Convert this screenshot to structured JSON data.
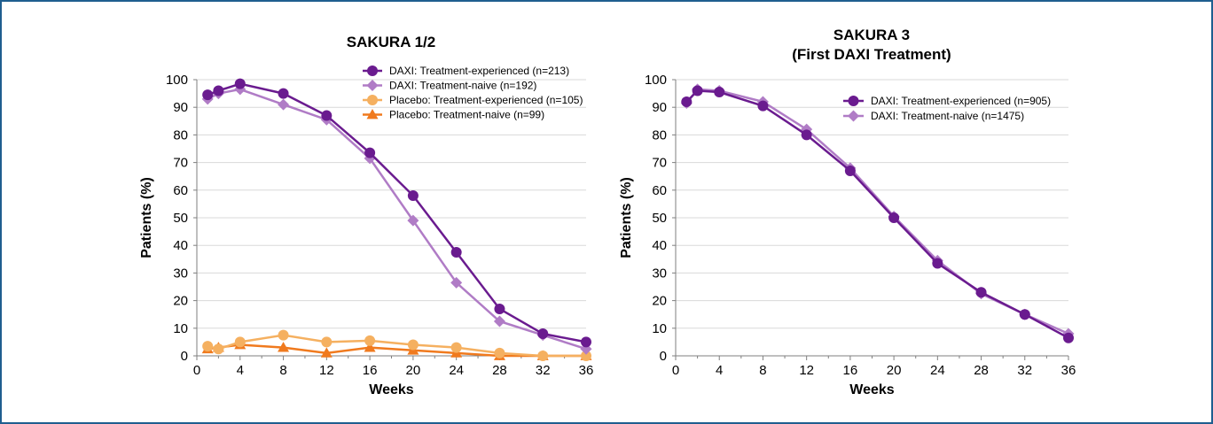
{
  "chart_data": [
    {
      "type": "line",
      "title": "SAKURA 1/2",
      "subtitle": "",
      "xlabel": "Weeks",
      "ylabel": "Patients (%)",
      "xlim": [
        0,
        36
      ],
      "ylim": [
        0,
        100
      ],
      "xticks": [
        0,
        4,
        8,
        12,
        16,
        20,
        24,
        28,
        32,
        36
      ],
      "yticks": [
        0,
        10,
        20,
        30,
        40,
        50,
        60,
        70,
        80,
        90,
        100
      ],
      "grid": true,
      "legend": "top-right",
      "series": [
        {
          "name": "DAXI: Treatment-experienced (n=213)",
          "color": "#6a1b8f",
          "marker": "circle",
          "x": [
            1,
            2,
            4,
            8,
            12,
            16,
            20,
            24,
            28,
            32,
            36
          ],
          "y": [
            94.5,
            96,
            98.5,
            95,
            87,
            73.5,
            58,
            37.5,
            17,
            8,
            5
          ]
        },
        {
          "name": "DAXI: Treatment-naive (n=192)",
          "color": "#b07cc6",
          "marker": "diamond",
          "x": [
            1,
            2,
            4,
            8,
            12,
            16,
            20,
            24,
            28,
            32,
            36
          ],
          "y": [
            93,
            95,
            96.5,
            91,
            85.5,
            71.5,
            49,
            26.5,
            12.5,
            7.5,
            2.5
          ]
        },
        {
          "name": "Placebo: Treatment-experienced (n=105)",
          "color": "#f5b060",
          "marker": "circle",
          "x": [
            1,
            2,
            4,
            8,
            12,
            16,
            20,
            24,
            28,
            32,
            36
          ],
          "y": [
            3.5,
            2.5,
            5,
            7.5,
            5,
            5.5,
            4,
            3,
            1,
            0,
            0
          ]
        },
        {
          "name": "Placebo: Treatment-naive (n=99)",
          "color": "#f07a1e",
          "marker": "triangle",
          "x": [
            1,
            2,
            4,
            8,
            12,
            16,
            20,
            24,
            28,
            32,
            36
          ],
          "y": [
            2.5,
            3,
            4,
            3,
            1,
            3,
            2,
            1,
            0,
            0,
            0
          ]
        }
      ]
    },
    {
      "type": "line",
      "title": "SAKURA 3",
      "subtitle": "(First DAXI Treatment)",
      "xlabel": "Weeks",
      "ylabel": "Patients (%)",
      "xlim": [
        0,
        36
      ],
      "ylim": [
        0,
        100
      ],
      "xticks": [
        0,
        4,
        8,
        12,
        16,
        20,
        24,
        28,
        32,
        36
      ],
      "yticks": [
        0,
        10,
        20,
        30,
        40,
        50,
        60,
        70,
        80,
        90,
        100
      ],
      "grid": true,
      "legend": "top-right",
      "series": [
        {
          "name": "DAXI: Treatment-experienced (n=905)",
          "color": "#6a1b8f",
          "marker": "circle",
          "x": [
            1,
            2,
            4,
            8,
            12,
            16,
            20,
            24,
            28,
            32,
            36
          ],
          "y": [
            92,
            96,
            95.5,
            90.5,
            80,
            67,
            50,
            33.5,
            23,
            15,
            6.5
          ]
        },
        {
          "name": "DAXI: Treatment-naive (n=1475)",
          "color": "#b07cc6",
          "marker": "diamond",
          "x": [
            1,
            2,
            4,
            8,
            12,
            16,
            20,
            24,
            28,
            32,
            36
          ],
          "y": [
            91.5,
            96.5,
            96,
            92,
            82,
            68,
            50.5,
            34.5,
            22.5,
            15,
            8
          ]
        }
      ]
    }
  ]
}
